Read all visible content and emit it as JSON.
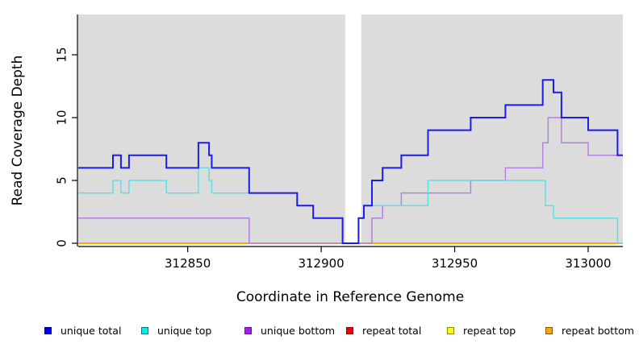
{
  "chart_data": {
    "type": "line",
    "step": "after",
    "title": "",
    "xlabel": "Coordinate in Reference Genome",
    "ylabel": "Read Coverage Depth",
    "xlim": [
      312809,
      313013
    ],
    "ylim": [
      0,
      18.2
    ],
    "x_ticks": [
      312850,
      312900,
      312950,
      313000
    ],
    "y_ticks": [
      0,
      5,
      10,
      15
    ],
    "grid": false,
    "panel_bg": "#dcdcdc",
    "gap_region": [
      312909,
      312915
    ],
    "legend_position": "bottom",
    "series": [
      {
        "name": "repeat total",
        "color": "#dd0000",
        "width": 1.4,
        "points": [
          [
            312809,
            0
          ],
          [
            313013,
            0
          ]
        ]
      },
      {
        "name": "repeat top",
        "color": "#ffff00",
        "width": 1.4,
        "points": [
          [
            312809,
            0
          ],
          [
            313013,
            0
          ]
        ]
      },
      {
        "name": "repeat bottom",
        "color": "#ffa500",
        "width": 1.7,
        "points": [
          [
            312809,
            0
          ],
          [
            313013,
            0
          ]
        ]
      },
      {
        "name": "unique bottom",
        "color": "#b580e0",
        "width": 1.5,
        "points": [
          [
            312809,
            2
          ],
          [
            312873,
            0
          ],
          [
            312919,
            2
          ],
          [
            312923,
            3
          ],
          [
            312930,
            4
          ],
          [
            312956,
            5
          ],
          [
            312969,
            6
          ],
          [
            312983,
            8
          ],
          [
            312985,
            10
          ],
          [
            312990,
            8
          ],
          [
            313000,
            7
          ],
          [
            313013,
            7
          ]
        ]
      },
      {
        "name": "unique top",
        "color": "#5ce0e8",
        "width": 1.5,
        "points": [
          [
            312809,
            4
          ],
          [
            312822,
            5
          ],
          [
            312825,
            4
          ],
          [
            312828,
            5
          ],
          [
            312842,
            4
          ],
          [
            312854,
            6
          ],
          [
            312858,
            5
          ],
          [
            312859,
            4
          ],
          [
            312891,
            3
          ],
          [
            312897,
            2
          ],
          [
            312908,
            0
          ],
          [
            312914,
            2
          ],
          [
            312916,
            3
          ],
          [
            312940,
            5
          ],
          [
            312984,
            3
          ],
          [
            312987,
            2
          ],
          [
            313011,
            0
          ],
          [
            313013,
            0
          ]
        ]
      },
      {
        "name": "unique total",
        "color": "#1c1ce8",
        "width": 2,
        "points": [
          [
            312809,
            6
          ],
          [
            312822,
            7
          ],
          [
            312825,
            6
          ],
          [
            312828,
            7
          ],
          [
            312842,
            6
          ],
          [
            312854,
            8
          ],
          [
            312858,
            7
          ],
          [
            312859,
            6
          ],
          [
            312873,
            4
          ],
          [
            312891,
            3
          ],
          [
            312897,
            2
          ],
          [
            312908,
            0
          ],
          [
            312914,
            2
          ],
          [
            312916,
            3
          ],
          [
            312919,
            5
          ],
          [
            312923,
            6
          ],
          [
            312930,
            7
          ],
          [
            312940,
            9
          ],
          [
            312956,
            10
          ],
          [
            312969,
            11
          ],
          [
            312983,
            13
          ],
          [
            312987,
            12
          ],
          [
            312990,
            10
          ],
          [
            313000,
            9
          ],
          [
            313011,
            7
          ],
          [
            313013,
            7
          ]
        ]
      }
    ]
  },
  "legend": {
    "items": [
      {
        "label": "unique total",
        "color": "#0000ee",
        "border": "#000090"
      },
      {
        "label": "unique top",
        "color": "#00eeee",
        "border": "#007a8a"
      },
      {
        "label": "unique bottom",
        "color": "#a020f0",
        "border": "#6a0da0"
      },
      {
        "label": "repeat total",
        "color": "#ee0000",
        "border": "#900000"
      },
      {
        "label": "repeat top",
        "color": "#ffff00",
        "border": "#8a8a00"
      },
      {
        "label": "repeat bottom",
        "color": "#ffa500",
        "border": "#8a5a00"
      }
    ]
  }
}
